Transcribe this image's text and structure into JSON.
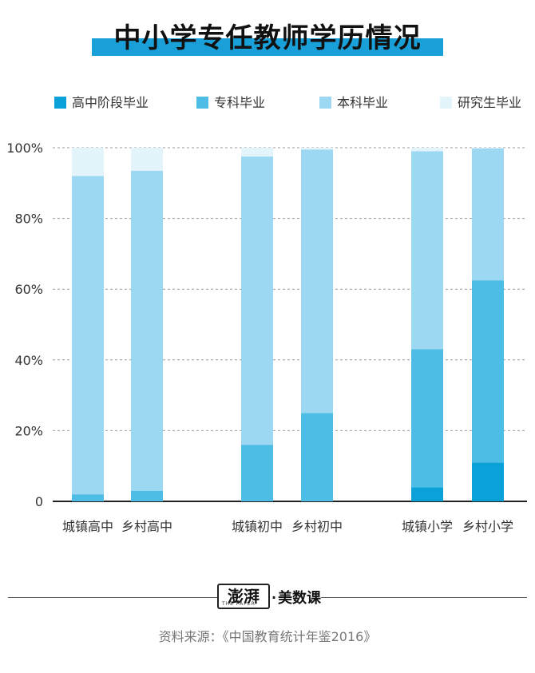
{
  "title": "中小学专任教师学历情况",
  "legend": [
    {
      "label": "高中阶段毕业",
      "color": "#0aa0d8"
    },
    {
      "label": "专科毕业",
      "color": "#4ebde6"
    },
    {
      "label": "本科毕业",
      "color": "#9dd8f2"
    },
    {
      "label": "研究生毕业",
      "color": "#e4f4fb"
    }
  ],
  "chart_data": {
    "type": "bar",
    "stacked": true,
    "title": "中小学专任教师学历情况",
    "categories": [
      "城镇高中",
      "乡村高中",
      "城镇初中",
      "乡村初中",
      "城镇小学",
      "乡村小学"
    ],
    "series": [
      {
        "name": "高中阶段毕业",
        "values": [
          0.0,
          0.0,
          0.0,
          0.0,
          4.0,
          11.0
        ]
      },
      {
        "name": "专科毕业",
        "values": [
          2.0,
          3.0,
          16.0,
          25.0,
          39.0,
          51.5
        ]
      },
      {
        "name": "本科毕业",
        "values": [
          90.0,
          90.5,
          81.5,
          74.5,
          56.0,
          37.3
        ]
      },
      {
        "name": "研究生毕业",
        "values": [
          8.0,
          6.5,
          2.5,
          0.5,
          1.0,
          0.2
        ]
      }
    ],
    "ylim": [
      0,
      100
    ],
    "yticks": [
      "0",
      "20%",
      "40%",
      "60%",
      "80%",
      "100%"
    ],
    "grid": true,
    "legend_position": "top"
  },
  "footer": {
    "brand_stamp": "澎湃",
    "brand_sub": "THE PAPER",
    "brand_dot": "·",
    "brand_name": "美数课",
    "source": "资料来源：《中国教育统计年鉴2016》"
  }
}
